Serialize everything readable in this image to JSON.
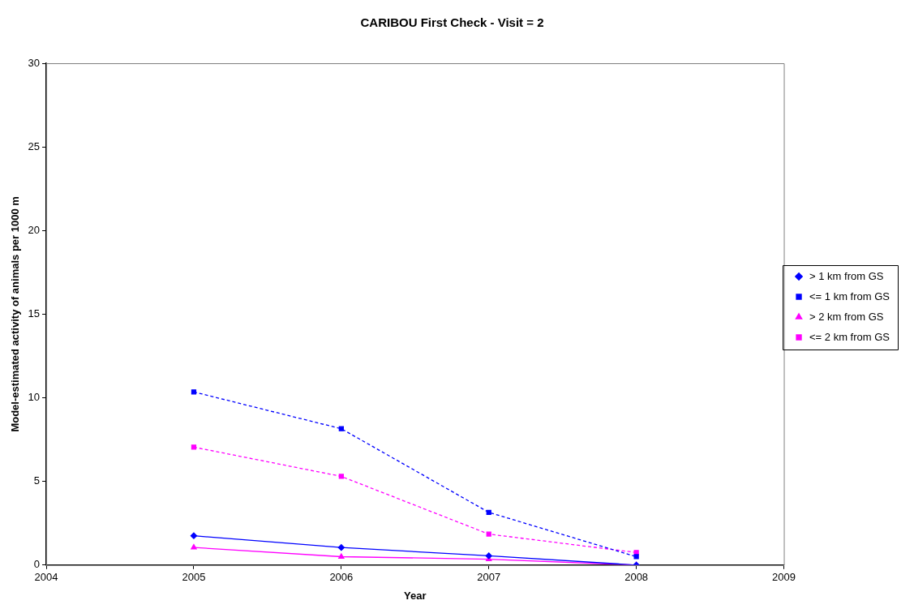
{
  "chart_data": {
    "type": "line",
    "title": "CARIBOU First Check - Visit = 2",
    "xlabel": "Year",
    "ylabel": "Model-estimated activity of animals per 1000 m",
    "x": [
      2005,
      2006,
      2007,
      2008
    ],
    "series": [
      {
        "name": "> 1 km from GS",
        "color": "#0000ff",
        "values": [
          1.75,
          1.05,
          0.55,
          0
        ],
        "marker": "diamond",
        "line_style": "solid"
      },
      {
        "name": "<= 1 km from GS",
        "color": "#0000ff",
        "values": [
          10.35,
          8.15,
          3.15,
          0.5
        ],
        "marker": "square",
        "line_style": "dashed"
      },
      {
        "name": "> 2 km from GS",
        "color": "#ff00ff",
        "values": [
          1.05,
          0.5,
          0.35,
          0
        ],
        "marker": "triangle",
        "line_style": "solid"
      },
      {
        "name": "<= 2 km from GS",
        "color": "#ff00ff",
        "values": [
          7.05,
          5.3,
          1.85,
          0.75
        ],
        "marker": "square",
        "line_style": "dashed"
      }
    ],
    "xlim": [
      2004,
      2009
    ],
    "xticks": [
      2004,
      2005,
      2006,
      2007,
      2008,
      2009
    ],
    "ylim": [
      0,
      30
    ],
    "yticks": [
      0,
      5,
      10,
      15,
      20,
      25,
      30
    ],
    "grid": false,
    "legend": "right"
  }
}
